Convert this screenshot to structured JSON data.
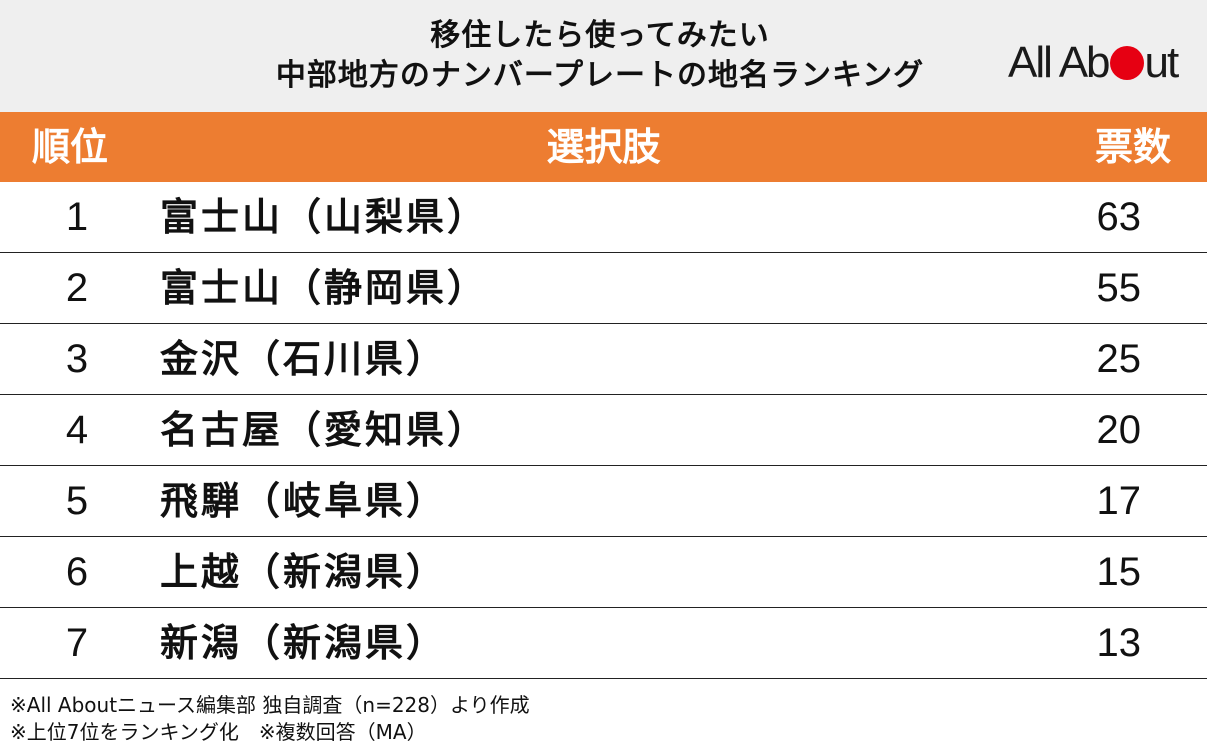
{
  "title_line1": "移住したら使ってみたい",
  "title_line2": "中部地方のナンバープレートの地名ランキング",
  "logo": "All About",
  "colors": {
    "header_bg": "#efefef",
    "table_head_bg": "#ed7d31",
    "logo_dot": "#e60012"
  },
  "chart_data": {
    "type": "table",
    "columns": [
      "順位",
      "選択肢",
      "票数"
    ],
    "rows": [
      {
        "rank": "1",
        "choice": "富士山（山梨県）",
        "votes": "63"
      },
      {
        "rank": "2",
        "choice": "富士山（静岡県）",
        "votes": "55"
      },
      {
        "rank": "3",
        "choice": "金沢（石川県）",
        "votes": "25"
      },
      {
        "rank": "4",
        "choice": "名古屋（愛知県）",
        "votes": "20"
      },
      {
        "rank": "5",
        "choice": "飛騨（岐阜県）",
        "votes": "17"
      },
      {
        "rank": "6",
        "choice": "上越（新潟県）",
        "votes": "15"
      },
      {
        "rank": "7",
        "choice": "新潟（新潟県）",
        "votes": "13"
      }
    ]
  },
  "notes": {
    "line1": "※All Aboutニュース編集部 独自調査（n=228）より作成",
    "line2": "※上位7位をランキング化　※複数回答（MA）"
  }
}
